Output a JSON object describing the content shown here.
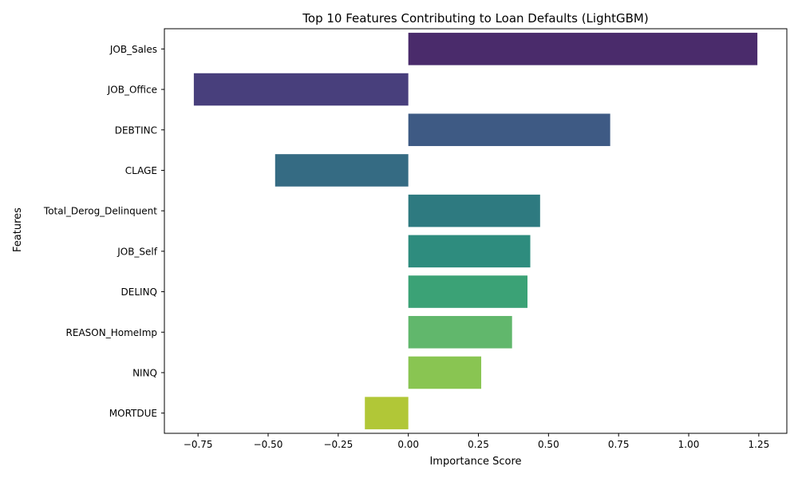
{
  "chart_data": {
    "type": "bar",
    "orientation": "horizontal",
    "title": "Top 10 Features Contributing to Loan Defaults (LightGBM)",
    "xlabel": "Importance Score",
    "ylabel": "Features",
    "xlim": [
      -0.87,
      1.35
    ],
    "xticks": [
      -0.75,
      -0.5,
      -0.25,
      0.0,
      0.25,
      0.5,
      0.75,
      1.0,
      1.25
    ],
    "xtick_labels": [
      "−0.75",
      "−0.50",
      "−0.25",
      "0.00",
      "0.25",
      "0.50",
      "0.75",
      "1.00",
      "1.25"
    ],
    "grid": false,
    "categories": [
      "JOB_Sales",
      "JOB_Office",
      "DEBTINC",
      "CLAGE",
      "Total_Derog_Delinquent",
      "JOB_Self",
      "DELINQ",
      "REASON_HomeImp",
      "NINQ",
      "MORTDUE"
    ],
    "values": [
      1.245,
      -0.765,
      0.72,
      -0.475,
      0.47,
      0.435,
      0.425,
      0.37,
      0.26,
      -0.155
    ],
    "colors": [
      "#4a2b6b",
      "#483f7c",
      "#3e5a84",
      "#356b83",
      "#2e7a80",
      "#2e8c7e",
      "#3ba276",
      "#61b76c",
      "#89c552",
      "#b1c737"
    ]
  }
}
